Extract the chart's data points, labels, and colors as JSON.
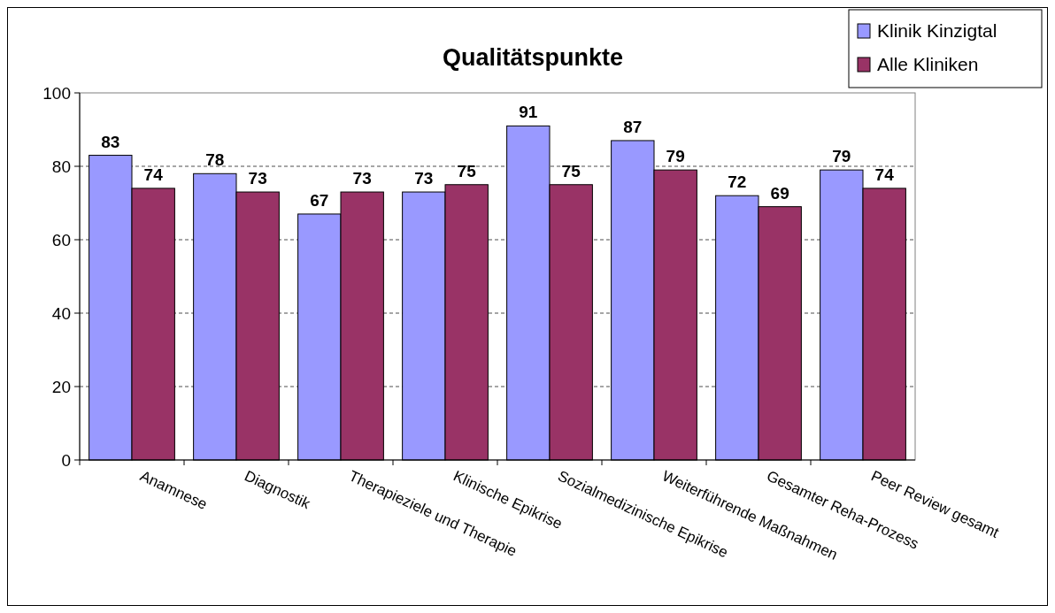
{
  "chart_data": {
    "type": "bar",
    "title": "Qualitätspunkte",
    "categories": [
      "Anamnese",
      "Diagnostik",
      "Therapieziele und Therapie",
      "Klinische Epikrise",
      "Sozialmedizinische Epikrise",
      "Weiterführende Maßnahmen",
      "Gesamter Reha-Prozess",
      "Peer Review gesamt"
    ],
    "series": [
      {
        "name": "Klinik Kinzigtal",
        "color": "#9999ff",
        "values": [
          83,
          78,
          67,
          73,
          91,
          87,
          72,
          79
        ]
      },
      {
        "name": "Alle Kliniken",
        "color": "#993366",
        "values": [
          74,
          73,
          73,
          75,
          75,
          79,
          69,
          74
        ]
      }
    ],
    "ylim": [
      0,
      100
    ],
    "yticks": [
      0,
      20,
      40,
      60,
      80,
      100
    ],
    "grid": "y",
    "legend": "top right",
    "data_labels": true
  }
}
